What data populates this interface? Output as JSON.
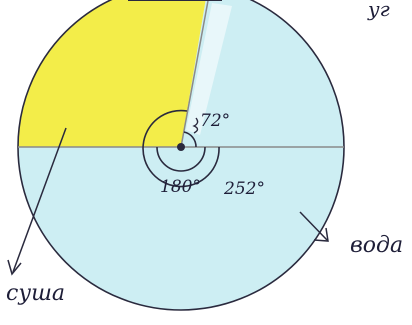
{
  "labels": {
    "land": "суша",
    "water": "вода",
    "top_cut": "уг",
    "angle_small": "72°",
    "angle_half": "180°",
    "angle_large": "252°"
  },
  "colors": {
    "land_fill": "#f2ec3a",
    "water_fill": "#cdeef3",
    "ink": "#2a2a3e",
    "pencil_line": "#8a8a8a"
  }
}
